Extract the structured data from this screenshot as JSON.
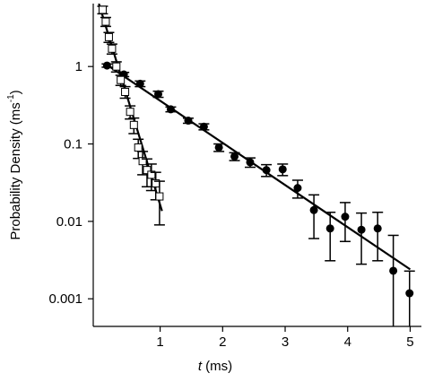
{
  "chart_data": {
    "type": "scatter",
    "x_label": {
      "italic": "t",
      "text": " (ms)"
    },
    "y_label": {
      "text": "Probability Density (ms",
      "superscript": "-1",
      "suffix": ")"
    },
    "xlim": [
      -0.07,
      5.18
    ],
    "ylim": [
      0.00044,
      6.5
    ],
    "xticks": [
      1,
      2,
      3,
      4,
      5
    ],
    "yticks": [
      0.001,
      0.01,
      0.1,
      1
    ],
    "log_y": true,
    "grid": false,
    "series": [
      {
        "marker": "filled-circle",
        "color": "#000000",
        "x": [
          0.15,
          0.42,
          0.68,
          0.97,
          1.17,
          1.45,
          1.7,
          1.94,
          2.19,
          2.44,
          2.7,
          2.96,
          3.2,
          3.46,
          3.72,
          3.96,
          4.22,
          4.48,
          4.73,
          4.99
        ],
        "values": [
          1.03,
          0.79,
          0.6,
          0.44,
          0.28,
          0.2,
          0.167,
          0.09,
          0.069,
          0.058,
          0.046,
          0.047,
          0.027,
          0.014,
          0.0081,
          0.0115,
          0.0078,
          0.0081,
          0.0023,
          0.00118
        ],
        "errors": [
          0.05,
          0.05,
          0.05,
          0.04,
          0.02,
          0.015,
          0.015,
          0.01,
          0.008,
          0.008,
          0.008,
          0.008,
          0.007,
          0.008,
          0.005,
          0.006,
          0.005,
          0.005,
          0.0043,
          0.0011
        ]
      },
      {
        "marker": "open-square",
        "color": "#000000",
        "x": [
          0.08,
          0.13,
          0.18,
          0.23,
          0.3,
          0.37,
          0.44,
          0.52,
          0.58,
          0.65,
          0.72,
          0.79,
          0.86,
          0.93,
          0.99
        ],
        "values": [
          5.4,
          3.8,
          2.4,
          1.7,
          1.0,
          0.67,
          0.47,
          0.26,
          0.176,
          0.09,
          0.06,
          0.046,
          0.04,
          0.031,
          0.021
        ],
        "errors": [
          0.6,
          0.5,
          0.35,
          0.25,
          0.15,
          0.1,
          0.08,
          0.05,
          0.04,
          0.025,
          0.02,
          0.018,
          0.015,
          0.012,
          0.012
        ]
      }
    ],
    "lines": [
      {
        "color": "#000000",
        "x": [
          0.02,
          1.03
        ],
        "values": [
          6.5,
          0.0136
        ]
      },
      {
        "color": "#000000",
        "x": [
          0.15,
          5.0
        ],
        "values": [
          1.05,
          0.0024
        ]
      }
    ]
  }
}
